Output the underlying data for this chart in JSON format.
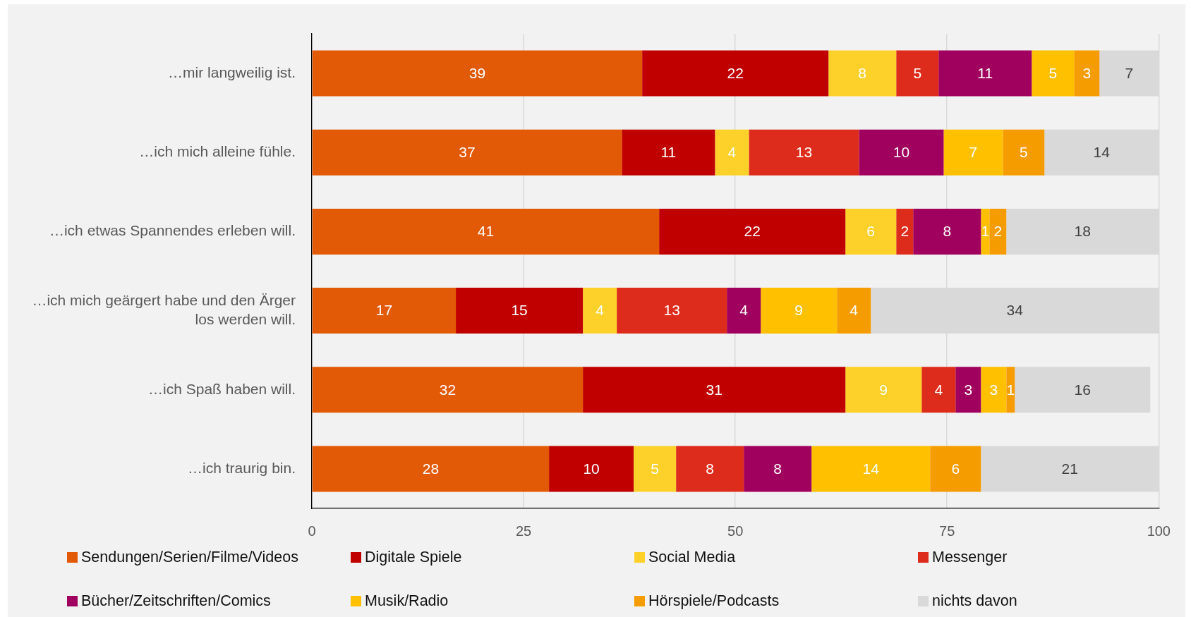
{
  "chart_data": {
    "type": "bar",
    "orientation": "horizontal",
    "stacked": true,
    "categories": [
      "…mir langweilig ist.",
      "…ich mich alleine fühle.",
      "…ich etwas Spannendes erleben will.",
      "…ich mich geärgert habe und den Ärger los werden will.",
      "…ich Spaß haben will.",
      "…ich traurig bin."
    ],
    "series": [
      {
        "name": "Sendungen/Serien/Filme/Videos",
        "color": "#e35a06",
        "values": [
          39,
          36.6,
          41,
          17,
          32,
          28
        ],
        "value_labels": [
          "39",
          "37",
          "41",
          "17",
          "32",
          "28"
        ]
      },
      {
        "name": "Digitale Spiele",
        "color": "#c00000",
        "values": [
          22,
          11,
          22,
          15,
          31,
          10
        ],
        "value_labels": [
          "22",
          "11",
          "22",
          "15",
          "31",
          "10"
        ]
      },
      {
        "name": "Social Media",
        "color": "#fdd12a",
        "values": [
          8,
          4,
          6,
          4,
          9,
          5
        ],
        "value_labels": [
          "8",
          "4",
          "6",
          "4",
          "9",
          "5"
        ]
      },
      {
        "name": "Messenger",
        "color": "#de2c1c",
        "values": [
          5,
          13,
          2,
          13,
          4,
          8
        ],
        "value_labels": [
          "5",
          "13",
          "2",
          "13",
          "4",
          "8"
        ]
      },
      {
        "name": "Bücher/Zeitschriften/Comics",
        "color": "#a0005e",
        "values": [
          11,
          10,
          8,
          4,
          3,
          8
        ],
        "value_labels": [
          "11",
          "10",
          "8",
          "4",
          "3",
          "8"
        ]
      },
      {
        "name": "Musik/Radio",
        "color": "#ffc000",
        "values": [
          5,
          7,
          1,
          9,
          3,
          14
        ],
        "value_labels": [
          "5",
          "7",
          "1",
          "9",
          "3",
          "14"
        ]
      },
      {
        "name": "Hörspiele/Podcasts",
        "color": "#f59c00",
        "values": [
          3,
          4.9,
          2,
          4,
          1,
          6
        ],
        "value_labels": [
          "3",
          "5",
          "2",
          "4",
          "1",
          "6"
        ]
      },
      {
        "name": "nichts davon",
        "color": "#d9d9d9",
        "values": [
          7,
          13.5,
          18,
          34,
          16,
          21
        ],
        "value_labels": [
          "7",
          "14",
          "18",
          "34",
          "16",
          "21"
        ]
      }
    ],
    "xlim": [
      0,
      100
    ],
    "xticks": [
      0,
      25,
      50,
      75,
      100
    ],
    "grid": "x",
    "legend": "bottom"
  }
}
